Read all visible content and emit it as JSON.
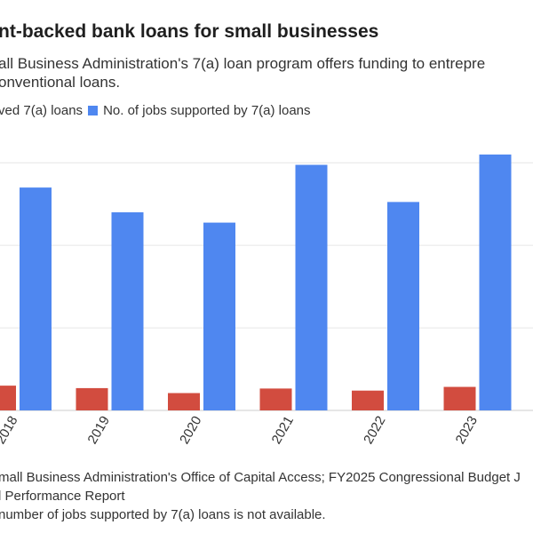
{
  "title": "nt-backed bank loans for small businesses",
  "subtitle_lines": [
    "all Business Administration's 7(a) loan program offers funding to entrepre",
    "onventional loans."
  ],
  "legend": [
    {
      "label": "ved 7(a) loans",
      "color": "#d24c3f"
    },
    {
      "label": "No. of jobs supported by 7(a) loans",
      "color": "#4f87f0"
    }
  ],
  "footer": {
    "source_lines": [
      "mall Business Administration's Office of Capital Access; FY2025 Congressional Budget J",
      "l Performance Report"
    ],
    "note": "number of jobs supported by 7(a) loans is not available."
  },
  "colors": {
    "red_series": "#d24c3f",
    "blue_series": "#4f87f0",
    "gridline": "#e6e6e6",
    "axis": "#cccccc"
  },
  "chart_data": {
    "type": "bar",
    "categories": [
      "2018",
      "2019",
      "2020",
      "2021",
      "2022",
      "2023"
    ],
    "series": [
      {
        "name": "ved 7(a) loans",
        "values": [
          60000,
          54000,
          42000,
          53000,
          48000,
          57000
        ]
      },
      {
        "name": "No. of jobs supported by 7(a) loans",
        "values": [
          540000,
          480000,
          455000,
          595000,
          505000,
          620000
        ]
      }
    ],
    "ylim": [
      0,
      650000
    ],
    "grid": true,
    "legend_position": "top-left",
    "x_tick_rotation": -60
  }
}
